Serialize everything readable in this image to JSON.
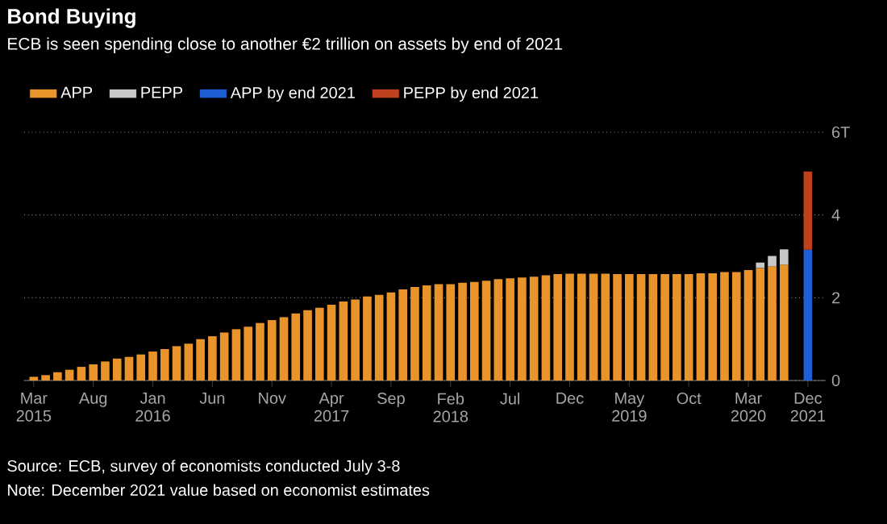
{
  "chart_data": {
    "type": "bar",
    "title": "Bond Buying",
    "subtitle": "ECB is seen spending close to another €2 trillion on assets by end of 2021",
    "categories": [
      "Mar 2015",
      null,
      null,
      null,
      null,
      "Aug",
      null,
      null,
      null,
      null,
      "Jan 2016",
      null,
      null,
      null,
      null,
      "Jun",
      null,
      null,
      null,
      null,
      "Nov",
      null,
      null,
      null,
      null,
      "Apr 2017",
      null,
      null,
      null,
      null,
      "Sep",
      null,
      null,
      null,
      null,
      "Feb 2018",
      null,
      null,
      null,
      null,
      "Jul",
      null,
      null,
      null,
      null,
      "Dec",
      null,
      null,
      null,
      null,
      "May 2019",
      null,
      null,
      null,
      null,
      "Oct",
      null,
      null,
      null,
      null,
      "Mar 2020",
      null,
      null,
      null,
      null,
      "Dec 2021"
    ],
    "stacked": true,
    "series": [
      {
        "name": "APP",
        "color": "#e8942b",
        "values": [
          0.09,
          0.13,
          0.2,
          0.26,
          0.33,
          0.39,
          0.46,
          0.53,
          0.57,
          0.63,
          0.7,
          0.76,
          0.83,
          0.89,
          1.0,
          1.07,
          1.16,
          1.24,
          1.3,
          1.39,
          1.46,
          1.53,
          1.62,
          1.7,
          1.76,
          1.83,
          1.91,
          1.96,
          2.03,
          2.07,
          2.13,
          2.2,
          2.26,
          2.3,
          2.33,
          2.33,
          2.36,
          2.38,
          2.41,
          2.45,
          2.47,
          2.49,
          2.51,
          2.54,
          2.57,
          2.58,
          2.58,
          2.58,
          2.58,
          2.57,
          2.57,
          2.57,
          2.57,
          2.57,
          2.57,
          2.57,
          2.59,
          2.59,
          2.62,
          2.62,
          2.67,
          2.72,
          2.76,
          2.8,
          null,
          null
        ]
      },
      {
        "name": "PEPP",
        "color": "#c8c8c8",
        "values": [
          null,
          null,
          null,
          null,
          null,
          null,
          null,
          null,
          null,
          null,
          null,
          null,
          null,
          null,
          null,
          null,
          null,
          null,
          null,
          null,
          null,
          null,
          null,
          null,
          null,
          null,
          null,
          null,
          null,
          null,
          null,
          null,
          null,
          null,
          null,
          null,
          null,
          null,
          null,
          null,
          null,
          null,
          null,
          null,
          null,
          null,
          null,
          null,
          null,
          null,
          null,
          null,
          null,
          null,
          null,
          null,
          null,
          null,
          null,
          null,
          null,
          0.13,
          0.25,
          0.37,
          null,
          null
        ]
      },
      {
        "name": "APP by end 2021",
        "color": "#1f5fd6",
        "values": [
          null,
          null,
          null,
          null,
          null,
          null,
          null,
          null,
          null,
          null,
          null,
          null,
          null,
          null,
          null,
          null,
          null,
          null,
          null,
          null,
          null,
          null,
          null,
          null,
          null,
          null,
          null,
          null,
          null,
          null,
          null,
          null,
          null,
          null,
          null,
          null,
          null,
          null,
          null,
          null,
          null,
          null,
          null,
          null,
          null,
          null,
          null,
          null,
          null,
          null,
          null,
          null,
          null,
          null,
          null,
          null,
          null,
          null,
          null,
          null,
          null,
          null,
          null,
          null,
          null,
          3.16
        ]
      },
      {
        "name": "PEPP by end 2021",
        "color": "#c0411e",
        "values": [
          null,
          null,
          null,
          null,
          null,
          null,
          null,
          null,
          null,
          null,
          null,
          null,
          null,
          null,
          null,
          null,
          null,
          null,
          null,
          null,
          null,
          null,
          null,
          null,
          null,
          null,
          null,
          null,
          null,
          null,
          null,
          null,
          null,
          null,
          null,
          null,
          null,
          null,
          null,
          null,
          null,
          null,
          null,
          null,
          null,
          null,
          null,
          null,
          null,
          null,
          null,
          null,
          null,
          null,
          null,
          null,
          null,
          null,
          null,
          null,
          null,
          null,
          null,
          null,
          null,
          1.89
        ]
      }
    ],
    "ylim": [
      0,
      6
    ],
    "yticks": [
      0,
      2,
      4,
      {
        "value": 6,
        "label": "6T"
      }
    ],
    "grid": "y",
    "legend": "top left",
    "annotations": [
      "Source: ECB, survey of economists conducted July 3-8",
      "Note: December 2021 value based on economist estimates"
    ]
  }
}
